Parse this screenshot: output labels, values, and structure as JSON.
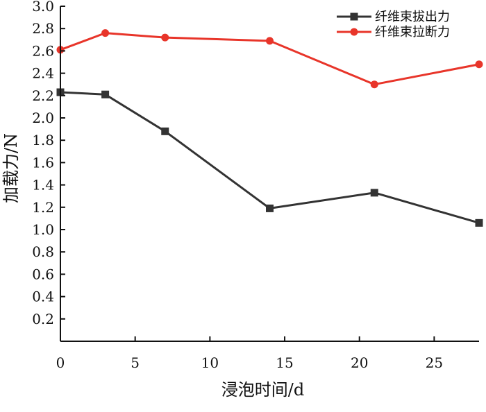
{
  "chart_data": {
    "type": "line",
    "xlabel": "浸泡时间/d",
    "ylabel": "加载力/N",
    "xlim": [
      0,
      28
    ],
    "ylim": [
      0,
      3.0
    ],
    "xticks": [
      0,
      5,
      10,
      15,
      20,
      25
    ],
    "yticks": [
      0.2,
      0.4,
      0.6,
      0.8,
      1.0,
      1.2,
      1.4,
      1.6,
      1.8,
      2.0,
      2.2,
      2.4,
      2.6,
      2.8,
      3.0
    ],
    "xtick_labels": [
      "0",
      "5",
      "10",
      "15",
      "20",
      "25"
    ],
    "ytick_labels": [
      "0.2",
      "0.4",
      "0.6",
      "0.8",
      "1.0",
      "1.2",
      "1.4",
      "1.6",
      "1.8",
      "2.0",
      "2.2",
      "2.4",
      "2.6",
      "2.8",
      "3.0"
    ],
    "legend_position": "top-right",
    "grid": false,
    "series": [
      {
        "name": "纤维束拔出力",
        "marker": "square",
        "color": "#333333",
        "x": [
          0,
          3,
          7,
          14,
          21,
          28
        ],
        "y": [
          2.23,
          2.21,
          1.88,
          1.19,
          1.33,
          1.06
        ]
      },
      {
        "name": "纤维束拉断力",
        "marker": "circle",
        "color": "#e8352a",
        "x": [
          0,
          3,
          7,
          14,
          21,
          28
        ],
        "y": [
          2.61,
          2.76,
          2.72,
          2.69,
          2.3,
          2.48
        ]
      }
    ]
  }
}
